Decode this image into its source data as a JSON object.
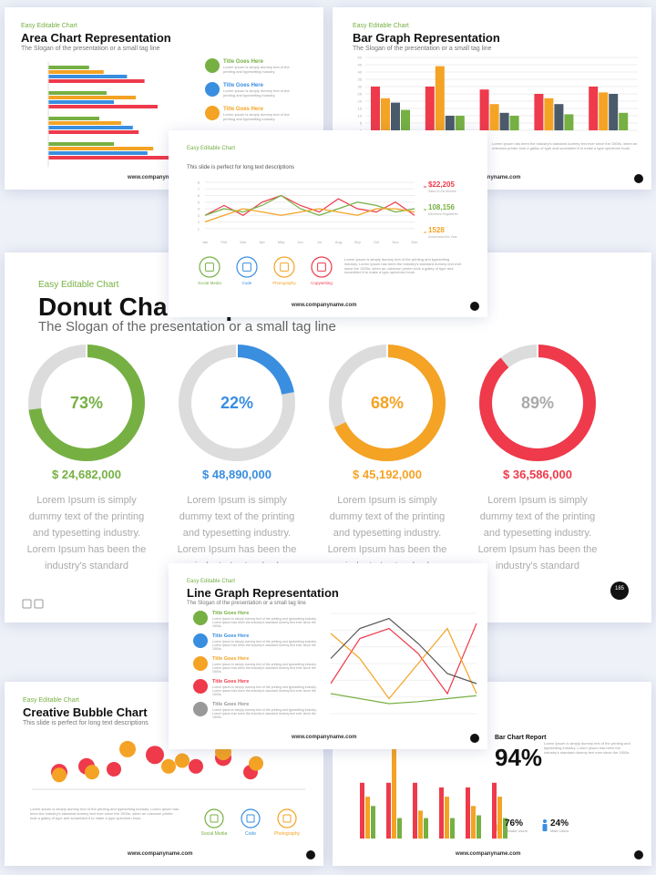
{
  "area_slide": {
    "kicker": "Easy Editable Chart",
    "title": "Area Chart Representation",
    "subtitle": "The Slogan of the presentation or a small tag line",
    "colors": [
      "#76b043",
      "#f4a324",
      "#3a8ee0",
      "#ee3a4b"
    ],
    "groups": [
      [
        28,
        38,
        54,
        66
      ],
      [
        40,
        60,
        45,
        75
      ],
      [
        35,
        50,
        58,
        62
      ],
      [
        45,
        72,
        68,
        100
      ]
    ],
    "items": [
      {
        "title": "Title Goes Here",
        "text": "Lorem Ipsum is simply dummy text of the printing and typesetting industry."
      },
      {
        "title": "Title Goes Here",
        "text": "Lorem Ipsum is simply dummy text of the printing and typesetting industry."
      },
      {
        "title": "Title Goes Here",
        "text": "Lorem Ipsum is simply dummy text of the printing and typesetting industry."
      }
    ],
    "footer": "www.companyname.com"
  },
  "bar_slide": {
    "kicker": "Easy Editable Chart",
    "title": "Bar Graph Representation",
    "subtitle": "The Slogan of the presentation or a small tag line",
    "colors": [
      "#ee3a4b",
      "#f4a324",
      "#4a5a6a",
      "#76b043"
    ],
    "ylim": [
      0,
      50
    ],
    "yticks": [
      0,
      5,
      10,
      15,
      20,
      25,
      30,
      35,
      40,
      45,
      50
    ],
    "groups": [
      [
        30,
        22,
        19,
        14
      ],
      [
        30,
        44,
        10,
        10
      ],
      [
        28,
        18,
        12,
        10
      ],
      [
        25,
        22,
        18,
        11
      ],
      [
        30,
        26,
        25,
        12
      ]
    ],
    "text": "Lorem Ipsum has been the industry's standard dummy text ever since the 1500s, when an unknown printer took a galley of type and scrambled it to make a type specimen book.",
    "footer": "www.companyname.com"
  },
  "line_slide": {
    "kicker": "Easy Editable Chart",
    "subtitle": "This slide is perfect for long text descriptions",
    "ylim": [
      0,
      8
    ],
    "yticks": [
      1,
      2,
      3,
      4,
      5,
      6,
      7,
      8
    ],
    "categories": [
      "Jan",
      "Feb",
      "Mar",
      "Apr",
      "May",
      "Jun",
      "Jul",
      "Aug",
      "Sep",
      "Oct",
      "Nov",
      "Dec"
    ],
    "series": [
      {
        "color": "#ee3a4b",
        "values": [
          3,
          4.5,
          3,
          5,
          6,
          4.5,
          3.5,
          5.5,
          4,
          3.5,
          5,
          3
        ]
      },
      {
        "color": "#76b043",
        "values": [
          3,
          4,
          3.5,
          4.5,
          6,
          4,
          3,
          4,
          5,
          4.5,
          3.5,
          4
        ]
      },
      {
        "color": "#f4a324",
        "values": [
          2,
          3,
          4,
          3.5,
          3,
          3.5,
          4,
          3.5,
          3,
          4,
          4,
          3.5
        ]
      }
    ],
    "stats": [
      {
        "value": "$22,205",
        "caption": "Sales in Six Months",
        "color": "#ee3a4b"
      },
      {
        "value": "108,156",
        "caption": "Members Registered",
        "color": "#76b043"
      },
      {
        "value": "1528",
        "caption": "Downloads this Year",
        "color": "#f4a324"
      }
    ],
    "icons": [
      {
        "label": "Social Media",
        "color": "#76b043"
      },
      {
        "label": "Code",
        "color": "#3a8ee0"
      },
      {
        "label": "Photography",
        "color": "#f4a324"
      },
      {
        "label": "Copywriting",
        "color": "#ee3a4b"
      }
    ],
    "text": "Lorem Ipsum is simply dummy text of the printing and typesetting industry. Lorem Ipsum has been the industry's standard dummy text ever since the 1500s, when an unknown printer took a galley of type and scrambled it to make a type specimen book.",
    "footer": "www.companyname.com"
  },
  "donut_slide": {
    "kicker": "Easy Editable Chart",
    "title": "Donut Chart Representation",
    "subtitle": "The Slogan of the presentation or a small tag line",
    "donuts": [
      {
        "percent": 73,
        "label": "73%",
        "amount": "$ 24,682,000",
        "color": "#76b043",
        "label_color": "#76b043"
      },
      {
        "percent": 22,
        "label": "22%",
        "amount": "$ 48,890,000",
        "color": "#3a8ee0",
        "label_color": "#3a8ee0"
      },
      {
        "percent": 68,
        "label": "68%",
        "amount": "$ 45,192,000",
        "color": "#f4a324",
        "label_color": "#f4a324"
      },
      {
        "percent": 89,
        "label": "89%",
        "amount": "$ 36,586,000",
        "color": "#ee3a4b",
        "label_color": "#aaaaaa"
      }
    ],
    "text": "Lorem Ipsum is simply dummy text of the printing and typesetting industry. Lorem Ipsum has been the industry's standard",
    "page": "185"
  },
  "graph_slide": {
    "kicker": "Easy Editable Chart",
    "title": "Line Graph Representation",
    "subtitle": "The Slogan of the presentation or a small tag line",
    "items": [
      {
        "title": "Title Goes Here",
        "color": "#76b043"
      },
      {
        "title": "Title Goes Here",
        "color": "#3a8ee0"
      },
      {
        "title": "Title Goes Here",
        "color": "#f4a324"
      },
      {
        "title": "Title Goes Here",
        "color": "#ee3a4b"
      },
      {
        "title": "Title Goes Here",
        "color": "#999999"
      }
    ],
    "item_text": "Lorem Ipsum is simply dummy text of the printing and typesetting industry. Lorem Ipsum has been the industry's standard dummy text ever since the 1500s.",
    "ylim": [
      0,
      100
    ],
    "series": [
      {
        "color": "#ee3a4b",
        "values": [
          30,
          75,
          85,
          60,
          20,
          90
        ]
      },
      {
        "color": "#f4a324",
        "values": [
          80,
          55,
          15,
          50,
          85,
          20
        ]
      },
      {
        "color": "#555555",
        "values": [
          55,
          85,
          95,
          70,
          40,
          30
        ]
      },
      {
        "color": "#76b043",
        "values": [
          20,
          15,
          10,
          12,
          15,
          18
        ]
      }
    ],
    "footer": "www.companyname.com"
  },
  "bubble_slide": {
    "kicker": "Easy Editable Chart",
    "title": "Creative Bubble Chart",
    "subtitle": "This slide is perfect for long text descriptions",
    "xlim": [
      0,
      10
    ],
    "ylim": [
      0,
      10
    ],
    "series": [
      {
        "color": "#ee3a4b",
        "x": [
          1,
          2,
          3,
          4.5,
          6,
          7,
          8
        ],
        "y": [
          3,
          4,
          3.5,
          6,
          4,
          5.5,
          3
        ],
        "size": [
          9,
          9,
          8,
          10,
          8,
          9,
          8
        ]
      },
      {
        "color": "#f4a324",
        "x": [
          1,
          2.2,
          3.5,
          5,
          5.5,
          7,
          8.2
        ],
        "y": [
          2.5,
          3,
          7,
          4,
          5,
          6.5,
          4.5
        ],
        "size": [
          8,
          8,
          9,
          8,
          8,
          9,
          8
        ]
      }
    ],
    "text": "Lorem Ipsum is simply dummy text of the printing and typesetting industry. Lorem Ipsum has been the industry's standard dummy text ever since the 1500s, when an unknown printer took a galley of type and scrambled it to make a type specimen book.",
    "icons": [
      {
        "label": "Social Media",
        "color": "#76b043"
      },
      {
        "label": "Code",
        "color": "#3a8ee0"
      },
      {
        "label": "Photography",
        "color": "#f4a324"
      }
    ],
    "footer": "www.companyname.com"
  },
  "report_slide": {
    "title": "Bar Chart Report",
    "big": "94%",
    "text": "Lorem Ipsum is simply dummy text of the printing and typesetting industry. Lorem Ipsum has been the industry's standard dummy text ever since the 1500s.",
    "ylim": [
      0,
      100
    ],
    "colors": [
      "#ee3a4b",
      "#f4a324",
      "#76b043"
    ],
    "groups": [
      [
        60,
        45,
        35
      ],
      [
        60,
        100,
        22
      ],
      [
        60,
        30,
        22
      ],
      [
        55,
        45,
        22
      ],
      [
        55,
        35,
        25
      ],
      [
        60,
        45,
        22
      ]
    ],
    "users": [
      {
        "value": "76%",
        "label": "Female Users",
        "color": "#f4a324"
      },
      {
        "value": "24%",
        "label": "Male Users",
        "color": "#3a8ee0"
      }
    ],
    "footer": "www.companyname.com"
  }
}
